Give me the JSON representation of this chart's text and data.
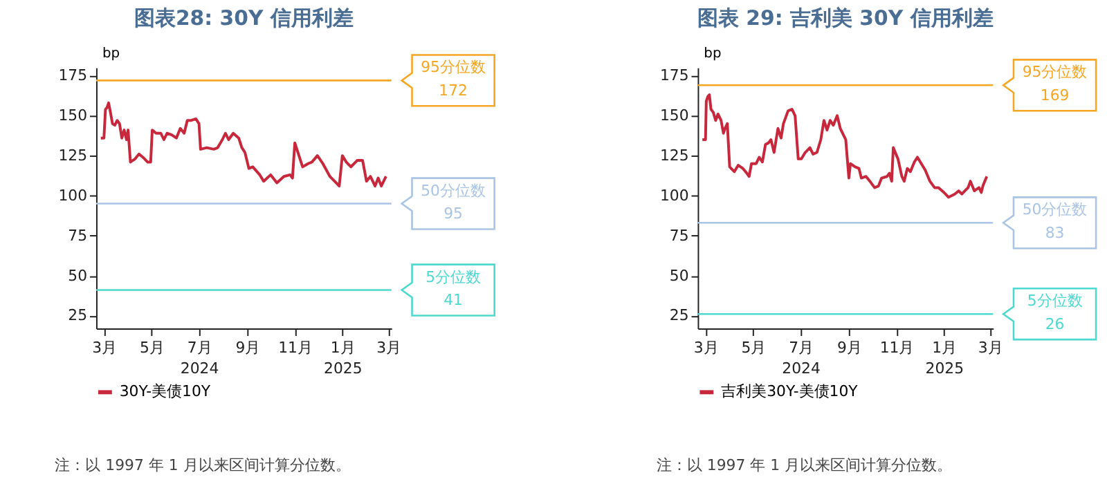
{
  "chart_data": [
    {
      "type": "line",
      "title": "图表28: 30Y 信用利差",
      "ylabel": "bp",
      "legend": "bottom",
      "grid": false,
      "xlim": [
        "2024-02-20",
        "2025-03-05"
      ],
      "ylim": [
        17,
        180
      ],
      "yticks": [
        25,
        50,
        75,
        100,
        125,
        150,
        175
      ],
      "xticks": [
        {
          "value": "2024-03-01",
          "label": "3月"
        },
        {
          "value": "2024-05-01",
          "label": "5月"
        },
        {
          "value": "2024-07-01",
          "label": "7月\n2024"
        },
        {
          "value": "2024-09-01",
          "label": "9月"
        },
        {
          "value": "2024-11-01",
          "label": "11月"
        },
        {
          "value": "2025-01-01",
          "label": "1月\n2025"
        },
        {
          "value": "2025-03-01",
          "label": "3月"
        }
      ],
      "ref_lines": [
        {
          "axis": "y",
          "value": 172,
          "label": "95分位数\n172",
          "color": "#f5a623"
        },
        {
          "axis": "y",
          "value": 95,
          "label": "50分位数\n95",
          "color": "#a9c4e4"
        },
        {
          "axis": "y",
          "value": 41,
          "label": "5分位数\n41",
          "color": "#4dd9d0"
        }
      ],
      "annotations": [
        "注：以 1997 年 1 月以来区间计算分位数。"
      ],
      "series": [
        {
          "name": "30Y-美债10Y",
          "color": "#c8283c",
          "x": [
            "2024-02-26",
            "2024-03-01",
            "2024-03-03",
            "2024-03-05",
            "2024-03-07",
            "2024-03-09",
            "2024-03-12",
            "2024-03-15",
            "2024-03-18",
            "2024-03-21",
            "2024-03-24",
            "2024-03-27",
            "2024-03-30",
            "2024-04-01",
            "2024-04-04",
            "2024-04-10",
            "2024-04-15",
            "2024-04-20",
            "2024-04-26",
            "2024-04-30",
            "2024-05-02",
            "2024-05-07",
            "2024-05-13",
            "2024-05-17",
            "2024-05-21",
            "2024-05-27",
            "2024-06-02",
            "2024-06-07",
            "2024-06-12",
            "2024-06-16",
            "2024-06-21",
            "2024-06-27",
            "2024-07-01",
            "2024-07-03",
            "2024-07-11",
            "2024-07-20",
            "2024-07-25",
            "2024-07-31",
            "2024-08-04",
            "2024-08-08",
            "2024-08-14",
            "2024-08-21",
            "2024-08-25",
            "2024-08-29",
            "2024-09-03",
            "2024-09-08",
            "2024-09-17",
            "2024-09-22",
            "2024-10-01",
            "2024-10-09",
            "2024-10-18",
            "2024-10-26",
            "2024-10-29",
            "2024-11-01",
            "2024-11-05",
            "2024-11-11",
            "2024-11-18",
            "2024-11-23",
            "2024-11-30",
            "2024-12-07",
            "2024-12-16",
            "2024-12-24",
            "2024-12-28",
            "2025-01-01",
            "2025-01-06",
            "2025-01-12",
            "2025-01-20",
            "2025-01-27",
            "2025-02-01",
            "2025-02-06",
            "2025-02-12",
            "2025-02-16",
            "2025-02-20",
            "2025-02-26"
          ],
          "values": [
            136,
            136,
            154,
            155,
            158,
            153,
            145,
            144,
            147,
            145,
            136,
            141,
            135,
            141,
            121,
            123,
            126,
            124,
            121,
            121,
            141,
            139,
            139,
            135,
            139,
            138,
            136,
            142,
            139,
            147,
            147,
            148,
            145,
            129,
            130,
            129,
            130,
            135,
            139,
            135,
            139,
            136,
            130,
            127,
            117,
            118,
            113,
            109,
            113,
            108,
            112,
            113,
            111,
            133,
            127,
            118,
            120,
            121,
            125,
            120,
            112,
            108,
            106,
            125,
            121,
            118,
            122,
            122,
            109,
            112,
            106,
            111,
            106,
            112
          ]
        }
      ]
    },
    {
      "type": "line",
      "title": "图表 29: 吉利美 30Y 信用利差",
      "ylabel": "bp",
      "legend": "bottom",
      "grid": false,
      "xlim": [
        "2024-02-20",
        "2025-03-05"
      ],
      "ylim": [
        17,
        180
      ],
      "yticks": [
        25,
        50,
        75,
        100,
        125,
        150,
        175
      ],
      "xticks": [
        {
          "value": "2024-03-01",
          "label": "3月"
        },
        {
          "value": "2024-05-01",
          "label": "5月"
        },
        {
          "value": "2024-07-01",
          "label": "7月\n2024"
        },
        {
          "value": "2024-09-01",
          "label": "9月"
        },
        {
          "value": "2024-11-01",
          "label": "11月"
        },
        {
          "value": "2025-01-01",
          "label": "1月\n2025"
        },
        {
          "value": "2025-03-01",
          "label": "3月"
        }
      ],
      "ref_lines": [
        {
          "axis": "y",
          "value": 169,
          "label": "95分位数\n169",
          "color": "#f5a623"
        },
        {
          "axis": "y",
          "value": 83,
          "label": "50分位数\n83",
          "color": "#a9c4e4"
        },
        {
          "axis": "y",
          "value": 26,
          "label": "5分位数\n26",
          "color": "#4dd9d0"
        }
      ],
      "annotations": [
        "注：以 1997 年 1 月以来区间计算分位数。"
      ],
      "series": [
        {
          "name": "吉利美30Y-美债10Y",
          "color": "#c8283c",
          "x": [
            "2024-02-26",
            "2024-03-01",
            "2024-03-02",
            "2024-03-04",
            "2024-03-06",
            "2024-03-08",
            "2024-03-11",
            "2024-03-14",
            "2024-03-17",
            "2024-03-21",
            "2024-03-24",
            "2024-03-26",
            "2024-03-29",
            "2024-04-01",
            "2024-04-07",
            "2024-04-12",
            "2024-04-18",
            "2024-04-23",
            "2024-04-26",
            "2024-04-29",
            "2024-05-05",
            "2024-05-09",
            "2024-05-13",
            "2024-05-17",
            "2024-05-21",
            "2024-05-24",
            "2024-05-28",
            "2024-06-02",
            "2024-06-06",
            "2024-06-09",
            "2024-06-15",
            "2024-06-20",
            "2024-06-24",
            "2024-06-28",
            "2024-07-02",
            "2024-07-07",
            "2024-07-13",
            "2024-07-17",
            "2024-07-22",
            "2024-07-27",
            "2024-07-31",
            "2024-08-04",
            "2024-08-08",
            "2024-08-12",
            "2024-08-17",
            "2024-08-21",
            "2024-08-25",
            "2024-08-28",
            "2024-09-01",
            "2024-09-03",
            "2024-09-09",
            "2024-09-14",
            "2024-09-17",
            "2024-09-23",
            "2024-09-28",
            "2024-10-04",
            "2024-10-09",
            "2024-10-13",
            "2024-10-20",
            "2024-10-23",
            "2024-10-26",
            "2024-10-28",
            "2024-11-03",
            "2024-11-08",
            "2024-11-11",
            "2024-11-15",
            "2024-11-19",
            "2024-11-24",
            "2024-11-28",
            "2024-12-03",
            "2024-12-08",
            "2024-12-14",
            "2024-12-20",
            "2024-12-25",
            "2025-01-01",
            "2025-01-07",
            "2025-01-15",
            "2025-01-20",
            "2025-01-24",
            "2025-02-01",
            "2025-02-04",
            "2025-02-09",
            "2025-02-15",
            "2025-02-18",
            "2025-02-20",
            "2025-02-25"
          ],
          "values": [
            135,
            135,
            159,
            162,
            163,
            154,
            152,
            147,
            151,
            147,
            139,
            142,
            145,
            118,
            115,
            119,
            117,
            114,
            112,
            120,
            120,
            124,
            121,
            132,
            133,
            135,
            127,
            142,
            136,
            145,
            153,
            154,
            150,
            123,
            123,
            127,
            130,
            126,
            127,
            135,
            147,
            141,
            147,
            144,
            150,
            142,
            138,
            135,
            111,
            120,
            118,
            117,
            111,
            112,
            109,
            105,
            106,
            111,
            112,
            114,
            109,
            130,
            123,
            112,
            109,
            117,
            115,
            121,
            124,
            120,
            116,
            109,
            105,
            105,
            102,
            99,
            101,
            103,
            101,
            105,
            109,
            103,
            105,
            102,
            106,
            112
          ]
        }
      ]
    }
  ]
}
